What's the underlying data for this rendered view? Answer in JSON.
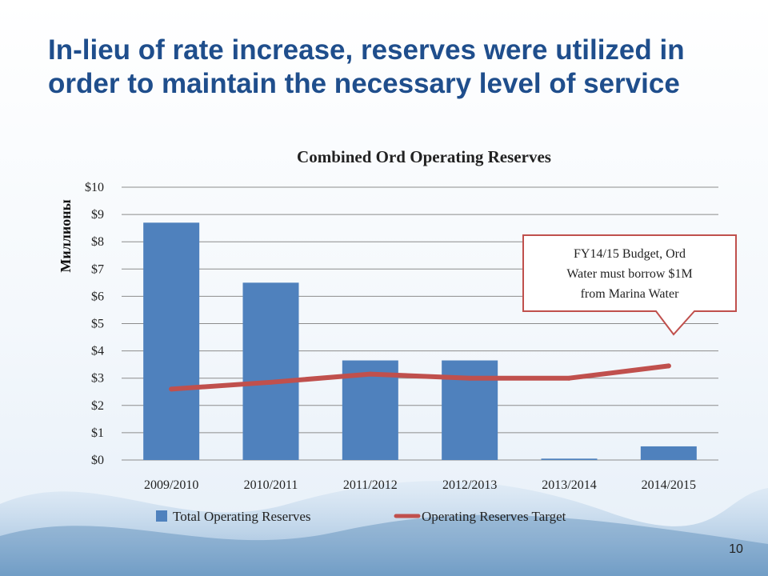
{
  "slide": {
    "title": "In-lieu of rate increase, reserves were utilized in order to maintain the necessary level of service",
    "page_number": "10"
  },
  "colors": {
    "title": "#1f4e8c",
    "bar": "#4f81bd",
    "line": "#c0504d",
    "callout_border": "#c0504d",
    "grid": "#8c8c8c"
  },
  "chart_data": {
    "type": "bar",
    "title": "Combined Ord Operating Reserves",
    "ylabel": "Миллионы",
    "xlabel": "",
    "categories": [
      "2009/2010",
      "2010/2011",
      "2011/2012",
      "2012/2013",
      "2013/2014",
      "2014/2015"
    ],
    "ylim": [
      0,
      10
    ],
    "yticks": [
      0,
      1,
      2,
      3,
      4,
      5,
      6,
      7,
      8,
      9,
      10
    ],
    "ytick_labels": [
      "$0",
      "$1",
      "$2",
      "$3",
      "$4",
      "$5",
      "$6",
      "$7",
      "$8",
      "$9",
      "$10"
    ],
    "grid": true,
    "legend_position": "bottom",
    "series": [
      {
        "name": "Total Operating Reserves",
        "type": "bar",
        "values": [
          8.7,
          6.5,
          3.65,
          3.65,
          0.05,
          0.5
        ]
      },
      {
        "name": "Operating Reserves Target",
        "type": "line",
        "values": [
          2.6,
          2.85,
          3.15,
          3.0,
          3.0,
          3.45
        ]
      }
    ],
    "annotations": [
      {
        "category": "2014/2015",
        "lines": [
          "FY14/15 Budget, Ord",
          "Water must borrow $1M",
          "from Marina Water"
        ]
      }
    ]
  }
}
